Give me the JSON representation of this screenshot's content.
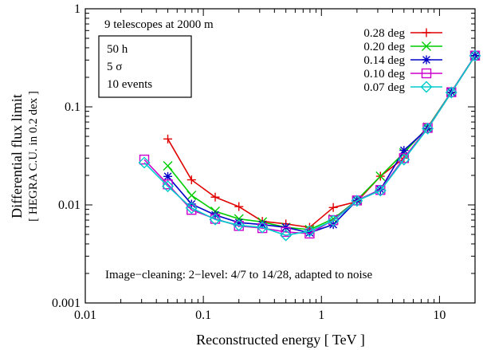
{
  "chart_data": {
    "type": "line",
    "xscale": "log",
    "yscale": "log",
    "xlim": [
      0.01,
      20
    ],
    "ylim": [
      0.001,
      1
    ],
    "xlabel": "Reconstructed energy [ TeV ]",
    "ylabel": "Differential flux limit",
    "ylabel_sub": "[ HEGRA C.U. in 0.2 dex ]",
    "x_ticks": [
      {
        "value": 0.01,
        "label": "0.01"
      },
      {
        "value": 0.1,
        "label": "0.1"
      },
      {
        "value": 1,
        "label": "1"
      },
      {
        "value": 10,
        "label": "10"
      }
    ],
    "y_ticks": [
      {
        "value": 0.001,
        "label": "0.001"
      },
      {
        "value": 0.01,
        "label": "0.01"
      },
      {
        "value": 0.1,
        "label": "0.1"
      },
      {
        "value": 1,
        "label": "1"
      }
    ],
    "grid": false,
    "legend_position": "top-right",
    "annotations": {
      "setup": "9 telescopes at 2000 m",
      "box_lines": [
        "50 h",
        "5 σ",
        "10 events"
      ],
      "cleaning": "Image−cleaning: 2−level: 4/7 to 14/28, adapted to noise"
    },
    "series": [
      {
        "name": "0.28 deg",
        "color": "#e00000",
        "marker": "plus",
        "x": [
          0.05,
          0.0794,
          0.126,
          0.2,
          0.316,
          0.5,
          0.794,
          1.26,
          2.0,
          3.16,
          5.0,
          7.94,
          12.6,
          20
        ],
        "y": [
          0.047,
          0.018,
          0.012,
          0.0096,
          0.0068,
          0.0064,
          0.0059,
          0.0094,
          0.0108,
          0.0196,
          0.03,
          0.06,
          0.14,
          0.33
        ]
      },
      {
        "name": "0.20 deg",
        "color": "#00cc00",
        "marker": "x",
        "x": [
          0.05,
          0.0794,
          0.126,
          0.2,
          0.316,
          0.5,
          0.794,
          1.26,
          2.0,
          3.16,
          5.0,
          7.94,
          12.6,
          20
        ],
        "y": [
          0.025,
          0.0125,
          0.0086,
          0.0072,
          0.0067,
          0.0059,
          0.0056,
          0.0072,
          0.0112,
          0.0196,
          0.034,
          0.062,
          0.142,
          0.332
        ]
      },
      {
        "name": "0.14 deg",
        "color": "#0000c8",
        "marker": "asterisk",
        "x": [
          0.05,
          0.0794,
          0.126,
          0.2,
          0.316,
          0.5,
          0.794,
          1.26,
          2.0,
          3.16,
          5.0,
          7.94,
          12.6,
          20
        ],
        "y": [
          0.0195,
          0.0102,
          0.0079,
          0.0066,
          0.0063,
          0.0059,
          0.0052,
          0.0063,
          0.0111,
          0.0143,
          0.036,
          0.06,
          0.141,
          0.333
        ]
      },
      {
        "name": "0.10 deg",
        "color": "#cc00cc",
        "marker": "square",
        "x": [
          0.0316,
          0.05,
          0.0794,
          0.126,
          0.2,
          0.316,
          0.5,
          0.794,
          1.26,
          2.0,
          3.16,
          5.0,
          7.94,
          12.6,
          20
        ],
        "y": [
          0.029,
          0.0162,
          0.0089,
          0.0072,
          0.0061,
          0.0058,
          0.0053,
          0.0051,
          0.007,
          0.0111,
          0.0142,
          0.03,
          0.061,
          0.141,
          0.333
        ]
      },
      {
        "name": "0.07 deg",
        "color": "#00cccc",
        "marker": "diamond",
        "x": [
          0.0316,
          0.05,
          0.0794,
          0.126,
          0.2,
          0.316,
          0.5,
          0.794,
          1.26,
          2.0,
          3.16,
          5.0,
          7.94,
          12.6,
          20
        ],
        "y": [
          0.027,
          0.0155,
          0.0093,
          0.0071,
          0.0062,
          0.0059,
          0.0049,
          0.0054,
          0.0069,
          0.011,
          0.014,
          0.029,
          0.06,
          0.14,
          0.332
        ]
      }
    ]
  }
}
